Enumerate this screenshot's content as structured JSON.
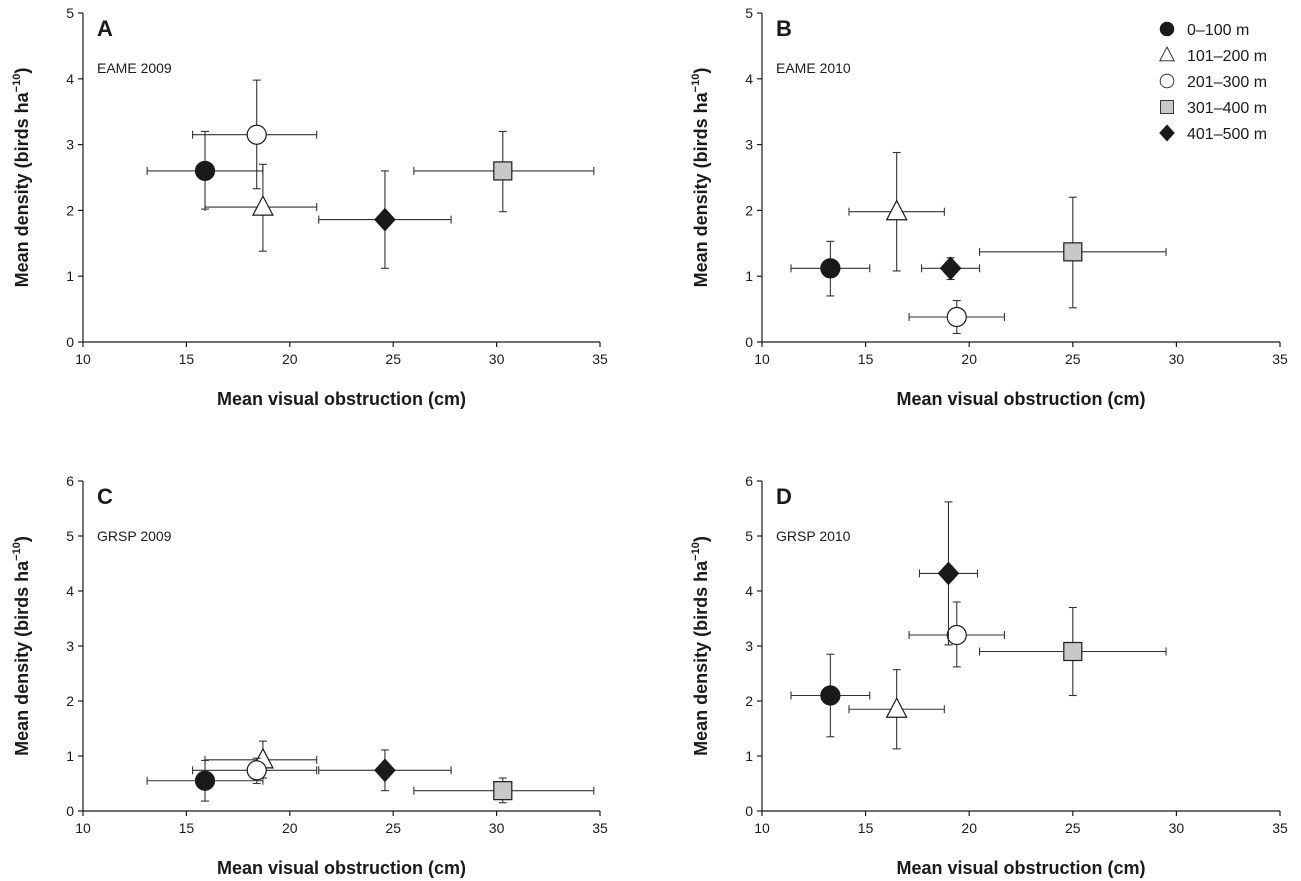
{
  "chart_data": [
    {
      "type": "scatter",
      "panel_letter": "A",
      "panel_label": "EAME 2009",
      "xlabel": "Mean visual obstruction (cm)",
      "ylabel": "Mean density (birds ha",
      "ylabel_sup": "−10",
      "ylabel_close": ")",
      "xlim": [
        10,
        35
      ],
      "ylim": [
        0,
        5
      ],
      "xticks": [
        10,
        15,
        20,
        25,
        30,
        35
      ],
      "yticks": [
        0,
        1,
        2,
        3,
        4,
        5
      ],
      "legend": false,
      "series": [
        {
          "name": "0–100 m",
          "x": 15.9,
          "y": 2.6,
          "xerr": [
            13.1,
            18.7
          ],
          "yerr": [
            2.02,
            3.2
          ]
        },
        {
          "name": "101–200 m",
          "x": 18.7,
          "y": 2.05,
          "xerr": [
            15.9,
            21.3
          ],
          "yerr": [
            1.38,
            2.7
          ]
        },
        {
          "name": "201–300 m",
          "x": 18.4,
          "y": 3.15,
          "xerr": [
            15.3,
            21.3
          ],
          "yerr": [
            2.33,
            3.98
          ]
        },
        {
          "name": "301–400 m",
          "x": 30.3,
          "y": 2.6,
          "xerr": [
            26.0,
            34.7
          ],
          "yerr": [
            1.98,
            3.2
          ]
        },
        {
          "name": "401–500 m",
          "x": 24.6,
          "y": 1.86,
          "xerr": [
            21.4,
            27.8
          ],
          "yerr": [
            1.12,
            2.6
          ]
        }
      ]
    },
    {
      "type": "scatter",
      "panel_letter": "B",
      "panel_label": "EAME 2010",
      "xlabel": "Mean visual obstruction (cm)",
      "ylabel": "Mean density (birds ha",
      "ylabel_sup": "−10",
      "ylabel_close": ")",
      "xlim": [
        10,
        35
      ],
      "ylim": [
        0,
        5
      ],
      "xticks": [
        10,
        15,
        20,
        25,
        30,
        35
      ],
      "yticks": [
        0,
        1,
        2,
        3,
        4,
        5
      ],
      "legend": true,
      "legend_position": "top-right",
      "series": [
        {
          "name": "0–100 m",
          "x": 13.3,
          "y": 1.12,
          "xerr": [
            11.4,
            15.2
          ],
          "yerr": [
            0.7,
            1.53
          ]
        },
        {
          "name": "101–200 m",
          "x": 16.5,
          "y": 1.98,
          "xerr": [
            14.2,
            18.8
          ],
          "yerr": [
            1.08,
            2.88
          ]
        },
        {
          "name": "201–300 m",
          "x": 19.4,
          "y": 0.38,
          "xerr": [
            17.1,
            21.7
          ],
          "yerr": [
            0.13,
            0.63
          ]
        },
        {
          "name": "301–400 m",
          "x": 25.0,
          "y": 1.37,
          "xerr": [
            20.5,
            29.5
          ],
          "yerr": [
            0.52,
            2.2
          ]
        },
        {
          "name": "401–500 m",
          "x": 19.1,
          "y": 1.12,
          "xerr": [
            17.7,
            20.5
          ],
          "yerr": [
            0.95,
            1.28
          ]
        }
      ]
    },
    {
      "type": "scatter",
      "panel_letter": "C",
      "panel_label": "GRSP 2009",
      "xlabel": "Mean visual obstruction (cm)",
      "ylabel": "Mean density (birds ha",
      "ylabel_sup": "−10",
      "ylabel_close": ")",
      "xlim": [
        10,
        35
      ],
      "ylim": [
        0,
        6
      ],
      "xticks": [
        10,
        15,
        20,
        25,
        30,
        35
      ],
      "yticks": [
        0,
        1,
        2,
        3,
        4,
        5,
        6
      ],
      "legend": false,
      "series": [
        {
          "name": "0–100 m",
          "x": 15.9,
          "y": 0.55,
          "xerr": [
            13.1,
            18.7
          ],
          "yerr": [
            0.18,
            0.92
          ]
        },
        {
          "name": "101–200 m",
          "x": 18.7,
          "y": 0.93,
          "xerr": [
            15.9,
            21.3
          ],
          "yerr": [
            0.6,
            1.27
          ]
        },
        {
          "name": "201–300 m",
          "x": 18.4,
          "y": 0.74,
          "xerr": [
            15.3,
            21.3
          ],
          "yerr": [
            0.5,
            0.96
          ]
        },
        {
          "name": "301–400 m",
          "x": 30.3,
          "y": 0.37,
          "xerr": [
            26.0,
            34.7
          ],
          "yerr": [
            0.15,
            0.6
          ]
        },
        {
          "name": "401–500 m",
          "x": 24.6,
          "y": 0.74,
          "xerr": [
            21.4,
            27.8
          ],
          "yerr": [
            0.37,
            1.11
          ]
        }
      ]
    },
    {
      "type": "scatter",
      "panel_letter": "D",
      "panel_label": "GRSP 2010",
      "xlabel": "Mean visual obstruction (cm)",
      "ylabel": "Mean density (birds ha",
      "ylabel_sup": "−10",
      "ylabel_close": ")",
      "xlim": [
        10,
        35
      ],
      "ylim": [
        0,
        6
      ],
      "xticks": [
        10,
        15,
        20,
        25,
        30,
        35
      ],
      "yticks": [
        0,
        1,
        2,
        3,
        4,
        5,
        6
      ],
      "legend": false,
      "series": [
        {
          "name": "0–100 m",
          "x": 13.3,
          "y": 2.1,
          "xerr": [
            11.4,
            15.2
          ],
          "yerr": [
            1.35,
            2.85
          ]
        },
        {
          "name": "101–200 m",
          "x": 16.5,
          "y": 1.85,
          "xerr": [
            14.2,
            18.8
          ],
          "yerr": [
            1.13,
            2.57
          ]
        },
        {
          "name": "201–300 m",
          "x": 19.4,
          "y": 3.2,
          "xerr": [
            17.1,
            21.7
          ],
          "yerr": [
            2.62,
            3.8
          ]
        },
        {
          "name": "301–400 m",
          "x": 25.0,
          "y": 2.9,
          "xerr": [
            20.5,
            29.5
          ],
          "yerr": [
            2.1,
            3.7
          ]
        },
        {
          "name": "401–500 m",
          "x": 19.0,
          "y": 4.32,
          "xerr": [
            17.6,
            20.4
          ],
          "yerr": [
            3.02,
            5.62
          ]
        }
      ]
    }
  ],
  "legend": {
    "position": "top-right",
    "entries": [
      {
        "label": "0–100 m",
        "marker": "filled-circle",
        "fill": "#1a1a1a"
      },
      {
        "label": "101–200 m",
        "marker": "open-triangle",
        "fill": "#ffffff"
      },
      {
        "label": "201–300 m",
        "marker": "open-circle",
        "fill": "#ffffff"
      },
      {
        "label": "301–400 m",
        "marker": "grey-square",
        "fill": "#c8c8c8"
      },
      {
        "label": "401–500 m",
        "marker": "filled-diamond",
        "fill": "#1a1a1a"
      }
    ]
  },
  "colors": {
    "axis": "#1a1a1a",
    "errorbar": "#333333",
    "dark": "#1a1a1a",
    "grey": "#c8c8c8",
    "open": "#ffffff"
  }
}
